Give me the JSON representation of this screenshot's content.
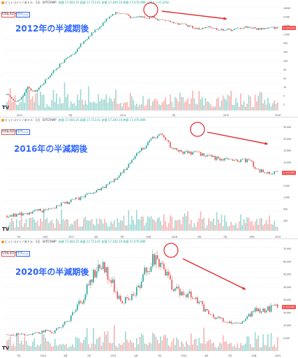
{
  "panels": [
    {
      "id": "p2012",
      "header": "ビットコイン / 米ドル · 1日 · BITSTAMP",
      "ohlc": "始値 17,604.25  高値 17,713.41  安値 17,200.10  終値 17,476.989 −58.1 (−0.33%)",
      "price_buttons": [
        "17,604.25",
        "17,713.41"
      ],
      "volume_label": "出来高  変化  2,574",
      "title": "2012年の半減期後",
      "axis_labels": [
        "10000",
        "5,000",
        "2,000",
        "1,000",
        "500",
        "200",
        "100",
        "50",
        "20",
        "10",
        "5",
        "2"
      ],
      "date_labels": [
        "2013",
        "7月",
        "2014",
        "7月",
        "2015",
        "2016"
      ],
      "last_price": "17,476.989"
    },
    {
      "id": "p2016",
      "header": "ビットコイン / 米ドル · 1日 · BITSTAMP",
      "ohlc": "始値 17,604.25  高値 17,713.41  安値 17,200.10  終値 17,476.989",
      "price_buttons": [
        "17,604.25",
        "17,713.41"
      ],
      "volume_label": "出来高  変化  2,574",
      "title": "2016年の半減期後",
      "axis_labels": [
        "25,000",
        "20,000",
        "15,000",
        "10,000",
        "5,000",
        "2,000",
        "1,000",
        "500",
        "200"
      ],
      "date_labels": [
        "7月",
        "10月",
        "2017",
        "4月",
        "7月",
        "10月",
        "2018",
        "4月",
        "7月",
        "10月",
        "2019"
      ],
      "last_price": "17,476.989"
    },
    {
      "id": "p2020",
      "header": "ビットコイン / 米ドル · 1日 · BITSTAMP",
      "ohlc": "始値 17,604.25  高値 17,713.41  安値 17,200.10  終値 17,476.989",
      "price_buttons": [
        "17,604.25",
        "17,713.41"
      ],
      "volume_label": "出来高  変化  2,574",
      "title": "2020年の半減期後",
      "axis_labels": [
        "70,000",
        "60,000",
        "50,000",
        "40,000",
        "30,000",
        "20,000",
        "10,000",
        "5,000"
      ],
      "date_labels": [
        "7月",
        "2020",
        "4月",
        "7月",
        "2021",
        "4月",
        "7月",
        "2022",
        "4月",
        "7月",
        "10月",
        "2023"
      ],
      "last_price": "17,476.989"
    }
  ],
  "colors": {
    "up": "#26a69a",
    "down": "#ef5350",
    "arrow": "#e0282e",
    "circle": "#e0282e",
    "title": "#2962ff",
    "grid": "#f0f3fa",
    "axis_text": "#434651"
  },
  "chart_data": [
    {
      "type": "bar",
      "series": [
        {
          "values": [
            0.2,
            0.15,
            0.12,
            0.18,
            0.35,
            0.25,
            0.3,
            0.5,
            0.8,
            1.2,
            1.8,
            2.6,
            3.5,
            4.2,
            8,
            12,
            18,
            25,
            35,
            55,
            80,
            95,
            90,
            85,
            60,
            70,
            72,
            65,
            68,
            55,
            50,
            48,
            46,
            40,
            38,
            35,
            30,
            28,
            30,
            32,
            29,
            26,
            27,
            26,
            28,
            30,
            33,
            31,
            28,
            29,
            30,
            31,
            30
          ]
        }
      ]
    },
    {
      "type": "bar",
      "series": [
        {
          "values": [
            0.6,
            0.62,
            0.64,
            0.68,
            0.72,
            0.75,
            0.82,
            0.9,
            1.0,
            1.1,
            1.2,
            1.35,
            1.5,
            1.7,
            2.0,
            2.5,
            3.2,
            4.2,
            6.5,
            9,
            12,
            16,
            19.5,
            14,
            10,
            9,
            8.8,
            8.5,
            8.2,
            7.5,
            7,
            6.8,
            6.5,
            6.3,
            6.4,
            6.2,
            4.2,
            3.8,
            3.6,
            3.7
          ]
        }
      ]
    },
    {
      "type": "bar",
      "series": [
        {
          "values": [
            10,
            9,
            11,
            9.5,
            10.5,
            11,
            12,
            13,
            11,
            15,
            18,
            22,
            28,
            35,
            45,
            55,
            60,
            58,
            50,
            40,
            35,
            34,
            38,
            45,
            55,
            62,
            65,
            60,
            50,
            45,
            42,
            40,
            38,
            35,
            30,
            25,
            22,
            21,
            20,
            19,
            18,
            20,
            24,
            28,
            27,
            28,
            29,
            30
          ]
        }
      ]
    }
  ]
}
